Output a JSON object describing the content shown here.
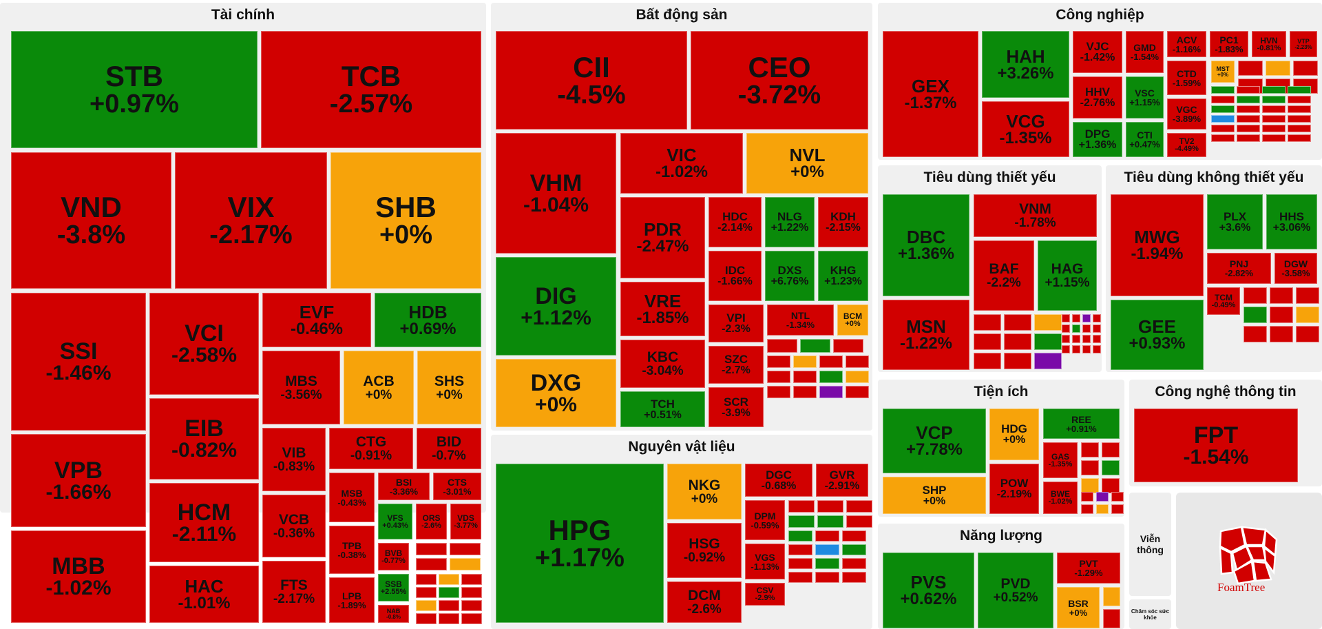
{
  "sectors": {
    "tai_chinh": "Tài chính",
    "bat_dong_san": "Bất động sản",
    "cong_nghiep": "Công nghiệp",
    "tieu_dung_thiet_yeu": "Tiêu dùng thiết yếu",
    "tieu_dung_khong_thiet_yeu": "Tiêu dùng không thiết yếu",
    "nguyen_vat_lieu": "Nguyên vật liệu",
    "tien_ich": "Tiện ích",
    "cong_nghe_thong_tin": "Công nghệ thông tin",
    "nang_luong": "Năng lượng",
    "vien_thong": "Viễn thông",
    "cham_soc_suc_khoe": "Chăm sóc sức khỏe"
  },
  "logo": {
    "text": "FoamTree"
  },
  "colors": {
    "down": "#d10000",
    "up": "#0a8a0a",
    "flat": "#f7a30a"
  },
  "tiles": [
    {
      "t": "STB",
      "p": "+0.97%",
      "c": "green"
    },
    {
      "t": "TCB",
      "p": "-2.57%",
      "c": "red"
    },
    {
      "t": "VND",
      "p": "-3.8%",
      "c": "red"
    },
    {
      "t": "VIX",
      "p": "-2.17%",
      "c": "red"
    },
    {
      "t": "SHB",
      "p": "+0%",
      "c": "yellow"
    },
    {
      "t": "SSI",
      "p": "-1.46%",
      "c": "red"
    },
    {
      "t": "VCI",
      "p": "-2.58%",
      "c": "red"
    },
    {
      "t": "EVF",
      "p": "-0.46%",
      "c": "red"
    },
    {
      "t": "HDB",
      "p": "+0.69%",
      "c": "green"
    },
    {
      "t": "MBS",
      "p": "-3.56%",
      "c": "red"
    },
    {
      "t": "ACB",
      "p": "+0%",
      "c": "yellow"
    },
    {
      "t": "SHS",
      "p": "+0%",
      "c": "yellow"
    },
    {
      "t": "VPB",
      "p": "-1.66%",
      "c": "red"
    },
    {
      "t": "EIB",
      "p": "-0.82%",
      "c": "red"
    },
    {
      "t": "VIB",
      "p": "-0.83%",
      "c": "red"
    },
    {
      "t": "CTG",
      "p": "-0.91%",
      "c": "red"
    },
    {
      "t": "BID",
      "p": "-0.7%",
      "c": "red"
    },
    {
      "t": "HCM",
      "p": "-2.11%",
      "c": "red"
    },
    {
      "t": "MSB",
      "p": "-0.43%",
      "c": "red"
    },
    {
      "t": "BSI",
      "p": "-3.36%",
      "c": "red"
    },
    {
      "t": "CTS",
      "p": "-3.01%",
      "c": "red"
    },
    {
      "t": "VCB",
      "p": "-0.36%",
      "c": "red"
    },
    {
      "t": "VFS",
      "p": "+0.43%",
      "c": "green"
    },
    {
      "t": "ORS",
      "p": "-2.6%",
      "c": "red"
    },
    {
      "t": "VDS",
      "p": "-3.77%",
      "c": "red"
    },
    {
      "t": "MBB",
      "p": "-1.02%",
      "c": "red"
    },
    {
      "t": "HAC",
      "p": "-1.01%",
      "c": "red"
    },
    {
      "t": "FTS",
      "p": "-2.17%",
      "c": "red"
    },
    {
      "t": "TPB",
      "p": "-0.38%",
      "c": "red"
    },
    {
      "t": "BVB",
      "p": "-0.77%",
      "c": "red"
    },
    {
      "t": "LPB",
      "p": "-1.89%",
      "c": "red"
    },
    {
      "t": "SSB",
      "p": "+2.55%",
      "c": "green"
    },
    {
      "t": "NAB",
      "p": "-0.8%",
      "c": "red"
    },
    {
      "t": "CII",
      "p": "-4.5%",
      "c": "red"
    },
    {
      "t": "CEO",
      "p": "-3.72%",
      "c": "red"
    },
    {
      "t": "VHM",
      "p": "-1.04%",
      "c": "red"
    },
    {
      "t": "VIC",
      "p": "-1.02%",
      "c": "red"
    },
    {
      "t": "NVL",
      "p": "+0%",
      "c": "yellow"
    },
    {
      "t": "PDR",
      "p": "-2.47%",
      "c": "red"
    },
    {
      "t": "HDC",
      "p": "-2.14%",
      "c": "red"
    },
    {
      "t": "NLG",
      "p": "+1.22%",
      "c": "green"
    },
    {
      "t": "KDH",
      "p": "-2.15%",
      "c": "red"
    },
    {
      "t": "DIG",
      "p": "+1.12%",
      "c": "green"
    },
    {
      "t": "IDC",
      "p": "-1.66%",
      "c": "red"
    },
    {
      "t": "DXS",
      "p": "+6.76%",
      "c": "green"
    },
    {
      "t": "KHG",
      "p": "+1.23%",
      "c": "green"
    },
    {
      "t": "VRE",
      "p": "-1.85%",
      "c": "red"
    },
    {
      "t": "VPI",
      "p": "-2.3%",
      "c": "red"
    },
    {
      "t": "NTL",
      "p": "-1.34%",
      "c": "red"
    },
    {
      "t": "BCM",
      "p": "+0%",
      "c": "yellow"
    },
    {
      "t": "KBC",
      "p": "-3.04%",
      "c": "red"
    },
    {
      "t": "SZC",
      "p": "-2.7%",
      "c": "red"
    },
    {
      "t": "DXG",
      "p": "+0%",
      "c": "yellow"
    },
    {
      "t": "TCH",
      "p": "+0.51%",
      "c": "green"
    },
    {
      "t": "SCR",
      "p": "-3.9%",
      "c": "red"
    },
    {
      "t": "HPG",
      "p": "+1.17%",
      "c": "green"
    },
    {
      "t": "NKG",
      "p": "+0%",
      "c": "yellow"
    },
    {
      "t": "DGC",
      "p": "-0.68%",
      "c": "red"
    },
    {
      "t": "GVR",
      "p": "-2.91%",
      "c": "red"
    },
    {
      "t": "DPM",
      "p": "-0.59%",
      "c": "red"
    },
    {
      "t": "HSG",
      "p": "-0.92%",
      "c": "red"
    },
    {
      "t": "VGS",
      "p": "-1.13%",
      "c": "red"
    },
    {
      "t": "CSV",
      "p": "-2.9%",
      "c": "red"
    },
    {
      "t": "DCM",
      "p": "-2.6%",
      "c": "red"
    },
    {
      "t": "GEX",
      "p": "-1.37%",
      "c": "red"
    },
    {
      "t": "HAH",
      "p": "+3.26%",
      "c": "green"
    },
    {
      "t": "VJC",
      "p": "-1.42%",
      "c": "red"
    },
    {
      "t": "GMD",
      "p": "-1.54%",
      "c": "red"
    },
    {
      "t": "ACV",
      "p": "-1.16%",
      "c": "red"
    },
    {
      "t": "PC1",
      "p": "-1.83%",
      "c": "red"
    },
    {
      "t": "HVN",
      "p": "-0.81%",
      "c": "red"
    },
    {
      "t": "VTP",
      "p": "-2.23%",
      "c": "red"
    },
    {
      "t": "HHV",
      "p": "-2.76%",
      "c": "red"
    },
    {
      "t": "VSC",
      "p": "+1.15%",
      "c": "green"
    },
    {
      "t": "CTD",
      "p": "-1.59%",
      "c": "red"
    },
    {
      "t": "VCG",
      "p": "-1.35%",
      "c": "red"
    },
    {
      "t": "DPG",
      "p": "+1.36%",
      "c": "green"
    },
    {
      "t": "CTI",
      "p": "+0.47%",
      "c": "green"
    },
    {
      "t": "VGC",
      "p": "-3.89%",
      "c": "red"
    },
    {
      "t": "TV2",
      "p": "-4.49%",
      "c": "red"
    },
    {
      "t": "DBC",
      "p": "+1.36%",
      "c": "green"
    },
    {
      "t": "VNM",
      "p": "-1.78%",
      "c": "red"
    },
    {
      "t": "BAF",
      "p": "-2.2%",
      "c": "red"
    },
    {
      "t": "HAG",
      "p": "+1.15%",
      "c": "green"
    },
    {
      "t": "MSN",
      "p": "-1.22%",
      "c": "red"
    },
    {
      "t": "MWG",
      "p": "-1.94%",
      "c": "red"
    },
    {
      "t": "PLX",
      "p": "+3.6%",
      "c": "green"
    },
    {
      "t": "HHS",
      "p": "+3.06%",
      "c": "green"
    },
    {
      "t": "PNJ",
      "p": "-2.82%",
      "c": "red"
    },
    {
      "t": "DGW",
      "p": "-3.58%",
      "c": "red"
    },
    {
      "t": "GEE",
      "p": "+0.93%",
      "c": "green"
    },
    {
      "t": "VCP",
      "p": "+7.78%",
      "c": "green"
    },
    {
      "t": "HDG",
      "p": "+0%",
      "c": "yellow"
    },
    {
      "t": "REE",
      "p": "+0.91%",
      "c": "green"
    },
    {
      "t": "SHP",
      "p": "+0%",
      "c": "yellow"
    },
    {
      "t": "POW",
      "p": "-2.19%",
      "c": "red"
    },
    {
      "t": "GAS",
      "p": "-1.35%",
      "c": "red"
    },
    {
      "t": "BWE",
      "p": "-1.02%",
      "c": "red"
    },
    {
      "t": "FPT",
      "p": "-1.54%",
      "c": "red"
    },
    {
      "t": "PVS",
      "p": "+0.62%",
      "c": "green"
    },
    {
      "t": "PVD",
      "p": "+0.52%",
      "c": "green"
    },
    {
      "t": "PVT",
      "p": "-1.29%",
      "c": "red"
    },
    {
      "t": "BSR",
      "p": "+0%",
      "c": "yellow"
    },
    {
      "t": "MST",
      "p": "+0%",
      "c": "yellow"
    },
    {
      "t": "TCM",
      "p": "-0.49%",
      "c": "red"
    }
  ]
}
